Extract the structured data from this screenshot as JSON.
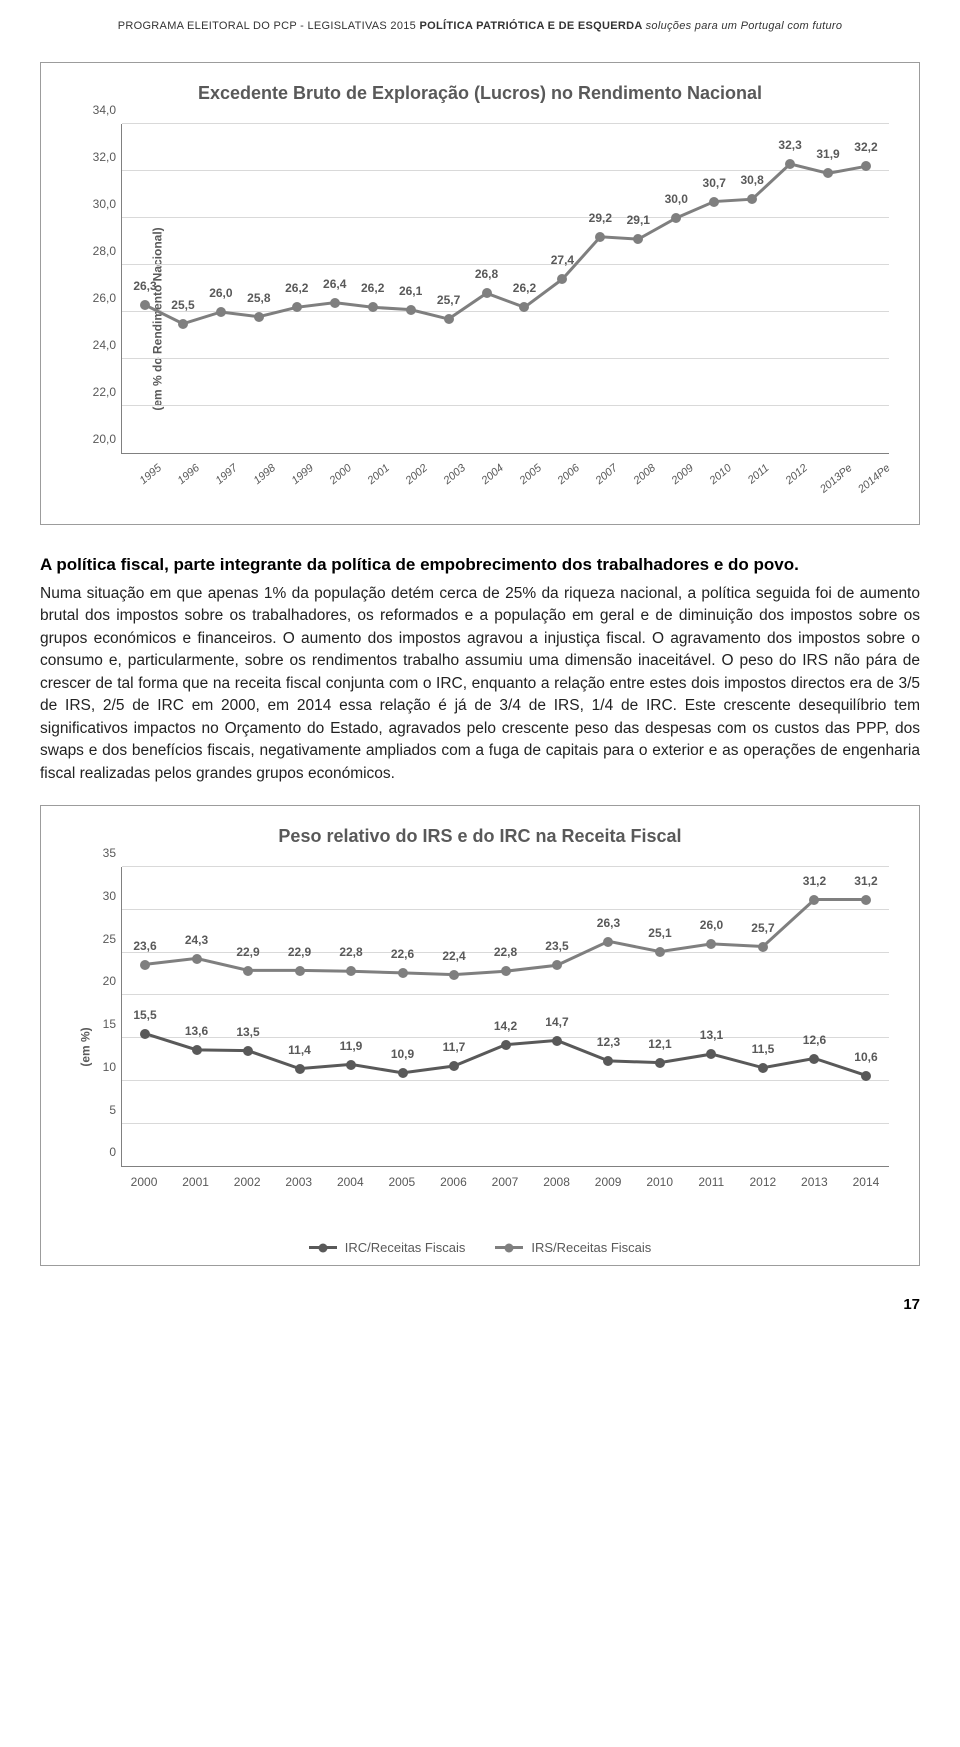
{
  "header": {
    "part1": "PROGRAMA ELEITORAL DO PCP - LEGISLATIVAS 2015 ",
    "part2": " POLÍTICA PATRIÓTICA E DE ESQUERDA ",
    "part3": " soluções para um Portugal com futuro"
  },
  "page_number": "17",
  "chart1": {
    "type": "line",
    "title": "Excedente Bruto de Exploração (Lucros) no Rendimento Nacional",
    "ylabel": "(em % do Rendimento Nacional)",
    "ylim": [
      20.0,
      34.0
    ],
    "yticks": [
      "20,0",
      "22,0",
      "24,0",
      "26,0",
      "28,0",
      "30,0",
      "32,0",
      "34,0"
    ],
    "ytick_vals": [
      20.0,
      22.0,
      24.0,
      26.0,
      28.0,
      30.0,
      32.0,
      34.0
    ],
    "categories": [
      "1995",
      "1996",
      "1997",
      "1998",
      "1999",
      "2000",
      "2001",
      "2002",
      "2003",
      "2004",
      "2005",
      "2006",
      "2007",
      "2008",
      "2009",
      "2010",
      "2011",
      "2012",
      "2013Pe",
      "2014Pe"
    ],
    "values": [
      26.3,
      25.5,
      26.0,
      25.8,
      26.2,
      26.4,
      26.2,
      26.1,
      25.7,
      26.8,
      26.2,
      27.4,
      29.2,
      29.1,
      30.0,
      30.7,
      30.8,
      32.3,
      31.9,
      32.2
    ],
    "value_labels": [
      "26,3",
      "25,5",
      "26,0",
      "25,8",
      "26,2",
      "26,4",
      "26,2",
      "26,1",
      "25,7",
      "26,8",
      "26,2",
      "27,4",
      "29,2",
      "29,1",
      "30,0",
      "30,7",
      "30,8",
      "32,3",
      "31,9",
      "32,2"
    ],
    "line_color": "#7f7f7f",
    "marker_color": "#7f7f7f",
    "background_color": "#ffffff",
    "grid_color": "#d9d9d9",
    "line_width": 3,
    "marker_size": 10,
    "label_fontsize": 12,
    "title_fontsize": 18
  },
  "body": {
    "heading": "A política fiscal, parte integrante da política de empobrecimento dos trabalhadores e do povo.",
    "paragraph": "Numa situação em que apenas 1% da população detém cerca de 25% da riqueza nacional, a política seguida foi de aumento brutal dos impostos sobre os trabalhadores, os reformados e a população em geral e de diminuição dos impostos sobre os grupos económicos e financeiros. O aumento dos impostos agravou a injustiça fiscal. O agravamento dos impostos sobre o consumo e, particularmente, sobre os rendimentos trabalho assumiu uma dimensão inaceitável. O peso do IRS não pára de crescer de tal forma que na receita fiscal conjunta com o IRC, enquanto a relação entre estes dois impostos directos era de 3/5 de IRS, 2/5 de IRC em 2000, em 2014 essa relação é já de 3/4 de IRS, 1/4 de IRC. Este crescente desequilíbrio tem significativos impactos no Orçamento do Estado, agravados pelo crescente peso das despesas com os custos das PPP, dos swaps e dos benefícios fiscais, negativamente ampliados com a fuga de capitais para o exterior e as operações de engenharia fiscal realizadas pelos grandes grupos económicos."
  },
  "chart2": {
    "type": "line",
    "title": "Peso relativo do IRS e do IRC na Receita Fiscal",
    "ylabel": "(em %)",
    "ylim": [
      0,
      35
    ],
    "yticks": [
      "0",
      "5",
      "10",
      "15",
      "20",
      "25",
      "30",
      "35"
    ],
    "ytick_vals": [
      0,
      5,
      10,
      15,
      20,
      25,
      30,
      35
    ],
    "categories": [
      "2000",
      "2001",
      "2002",
      "2003",
      "2004",
      "2005",
      "2006",
      "2007",
      "2008",
      "2009",
      "2010",
      "2011",
      "2012",
      "2013",
      "2014"
    ],
    "series": [
      {
        "name": "IRC/Receitas Fiscais",
        "values": [
          15.5,
          13.6,
          13.5,
          11.4,
          11.9,
          10.9,
          11.7,
          14.2,
          14.7,
          12.3,
          12.1,
          13.1,
          11.5,
          12.6,
          10.6
        ],
        "labels": [
          "15,5",
          "13,6",
          "13,5",
          "11,4",
          "11,9",
          "10,9",
          "11,7",
          "14,2",
          "14,7",
          "12,3",
          "12,1",
          "13,1",
          "11,5",
          "12,6",
          "10,6"
        ],
        "color": "#595959"
      },
      {
        "name": "IRS/Receitas Fiscais",
        "values": [
          23.6,
          24.3,
          22.9,
          22.9,
          22.8,
          22.6,
          22.4,
          22.8,
          23.5,
          26.3,
          25.1,
          26.0,
          25.7,
          31.2,
          31.2
        ],
        "labels": [
          "23,6",
          "24,3",
          "22,9",
          "22,9",
          "22,8",
          "22,6",
          "22,4",
          "22,8",
          "23,5",
          "26,3",
          "25,1",
          "26,0",
          "25,7",
          "31,2",
          "31,2"
        ],
        "color": "#7f7f7f"
      }
    ],
    "background_color": "#ffffff",
    "grid_color": "#d9d9d9",
    "line_width": 3,
    "marker_size": 10,
    "label_fontsize": 12,
    "title_fontsize": 18
  }
}
